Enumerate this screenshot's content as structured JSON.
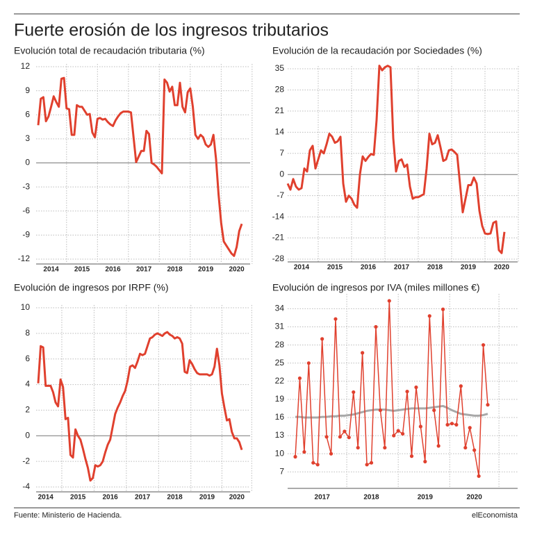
{
  "title": "Fuerte erosión de los ingresos tributarios",
  "source": "Fuente: Ministerio de Hacienda.",
  "credit": "elEconomista",
  "chart_data": [
    {
      "type": "line",
      "title": "Evolución total de recaudación tributaria (%)",
      "color": "#e0402e",
      "categories": [
        null,
        null,
        null,
        null,
        null,
        "2014",
        null,
        null,
        null,
        null,
        null,
        null,
        null,
        null,
        null,
        null,
        null,
        "2015",
        null,
        null,
        null,
        null,
        null,
        null,
        null,
        null,
        null,
        null,
        null,
        "2016",
        null,
        null,
        null,
        null,
        null,
        null,
        null,
        null,
        null,
        null,
        null,
        "2017",
        null,
        null,
        null,
        null,
        null,
        null,
        null,
        null,
        null,
        null,
        null,
        "2018",
        null,
        null,
        null,
        null,
        null,
        null,
        null,
        null,
        null,
        null,
        null,
        "2019",
        null,
        null,
        null,
        null,
        null,
        null,
        null,
        null,
        null,
        null,
        null,
        "2020",
        null,
        null
      ],
      "values": [
        4.7,
        8,
        8.2,
        5.2,
        5.8,
        7,
        8.3,
        7.6,
        7,
        10.5,
        10.6,
        6.8,
        6.7,
        3.5,
        3.5,
        7.2,
        7,
        7,
        6.5,
        6,
        6.1,
        3.8,
        3.2,
        5.5,
        5.6,
        5.4,
        5.5,
        5.1,
        4.8,
        4.6,
        5.3,
        5.8,
        6.2,
        6.4,
        6.4,
        6.4,
        6.3,
        3.2,
        0.1,
        0.8,
        1.5,
        1.5,
        4,
        3.6,
        0,
        -0.2,
        -0.5,
        -0.9,
        -1.3,
        10.4,
        10,
        8.9,
        9.5,
        7.2,
        7.2,
        10,
        7,
        6.3,
        8.8,
        9.3,
        7,
        3.5,
        3,
        3.5,
        3.2,
        2.3,
        2,
        2.3,
        3.5,
        0.5,
        -4,
        -7.5,
        -9.8,
        -10.3,
        -10.8,
        -11.3,
        -11.6,
        -10.5,
        -8.5,
        -7.6
      ],
      "ylim": [
        -12,
        12
      ],
      "yticks": [
        12,
        9,
        6,
        3,
        0,
        -3,
        -6,
        -9,
        -12
      ],
      "grid": true
    },
    {
      "type": "line",
      "title": "Evolución de la recaudación por Sociedades (%)",
      "color": "#e0402e",
      "categories": [
        null,
        null,
        null,
        null,
        null,
        "2014",
        null,
        null,
        null,
        null,
        null,
        null,
        null,
        null,
        null,
        null,
        null,
        "2015",
        null,
        null,
        null,
        null,
        null,
        null,
        null,
        null,
        null,
        null,
        null,
        "2016",
        null,
        null,
        null,
        null,
        null,
        null,
        null,
        null,
        null,
        null,
        null,
        "2017",
        null,
        null,
        null,
        null,
        null,
        null,
        null,
        null,
        null,
        null,
        null,
        "2018",
        null,
        null,
        null,
        null,
        null,
        null,
        null,
        null,
        null,
        null,
        null,
        "2019",
        null,
        null,
        null,
        null,
        null,
        null,
        null,
        null,
        null,
        null,
        null,
        "2020",
        null
      ],
      "values": [
        -3,
        -5,
        -1.5,
        -4,
        -5,
        -4.5,
        2,
        1,
        8,
        9.5,
        2,
        5,
        8,
        7,
        10,
        13.5,
        12.5,
        10.5,
        11,
        12.5,
        -3,
        -9,
        -7,
        -8,
        -10,
        -11,
        0,
        6,
        4.5,
        5.8,
        6.8,
        6.5,
        18,
        36,
        34.5,
        35.5,
        36,
        35.5,
        12,
        1,
        4.5,
        5,
        2.5,
        3.3,
        -4,
        -8,
        -7.5,
        -7.5,
        -7,
        -6.5,
        2,
        13.5,
        10,
        10.5,
        13,
        9,
        4.5,
        5,
        8,
        8.3,
        7.5,
        6.5,
        -3,
        -12.5,
        -8,
        -3.5,
        -3.5,
        -1,
        -3,
        -12,
        -17,
        -19.5,
        -19.7,
        -19.5,
        -16,
        -15.5,
        -25,
        -26,
        -19
      ],
      "ylim": [
        -28,
        35
      ],
      "yticks": [
        35,
        28,
        21,
        14,
        7,
        0,
        -7,
        -14,
        -21,
        -28
      ],
      "grid": true
    },
    {
      "type": "line",
      "title": "Evolución de ingresos por IRPF (%)",
      "color": "#e0402e",
      "categories": [
        null,
        null,
        null,
        "2014",
        null,
        null,
        null,
        null,
        null,
        null,
        null,
        null,
        null,
        null,
        null,
        null,
        "2015",
        null,
        null,
        null,
        null,
        null,
        null,
        null,
        null,
        null,
        null,
        null,
        null,
        "2016",
        null,
        null,
        null,
        null,
        null,
        null,
        null,
        null,
        null,
        null,
        null,
        null,
        "2017",
        null,
        null,
        null,
        null,
        null,
        null,
        null,
        null,
        null,
        null,
        null,
        null,
        "2018",
        null,
        null,
        null,
        null,
        null,
        null,
        null,
        null,
        null,
        null,
        null,
        null,
        "2019",
        null,
        null,
        null,
        null,
        null,
        null,
        null,
        null,
        null,
        null,
        null,
        "2020",
        null,
        null
      ],
      "values": [
        4.1,
        7,
        6.9,
        3.9,
        3.9,
        3.9,
        3.4,
        2.6,
        2.3,
        4.4,
        3.8,
        1.3,
        1.4,
        -1.5,
        -1.7,
        0.5,
        0,
        -0.3,
        -1,
        -1.8,
        -2.5,
        -3.5,
        -3.3,
        -2.3,
        -2.4,
        -2.3,
        -2,
        -1.3,
        -0.7,
        -0.3,
        0.7,
        1.7,
        2.2,
        2.6,
        3.1,
        3.5,
        4.3,
        5.4,
        5.5,
        5.3,
        5.8,
        6.4,
        6.3,
        6.4,
        7,
        7.6,
        7.7,
        7.9,
        8,
        7.9,
        7.8,
        8,
        8.1,
        7.9,
        7.8,
        7.6,
        7.7,
        7.6,
        7.2,
        5,
        4.9,
        5.9,
        5.6,
        5.2,
        4.9,
        4.8,
        4.8,
        4.8,
        4.8,
        4.7,
        4.8,
        5.4,
        6.8,
        5.5,
        3.3,
        2.2,
        1.2,
        1.3,
        0.3,
        -0.2,
        -0.2,
        -0.5,
        -1.1
      ],
      "ylim": [
        -4,
        10
      ],
      "yticks": [
        10,
        8,
        6,
        4,
        2,
        0,
        -2,
        -4
      ],
      "grid": true
    },
    {
      "type": "line_markers",
      "title": "Evolución de ingresos por IVA (miles millones €)",
      "categories": [
        null,
        null,
        null,
        null,
        null,
        null,
        "2017",
        null,
        null,
        null,
        null,
        null,
        null,
        null,
        null,
        null,
        null,
        "2018",
        null,
        null,
        null,
        null,
        null,
        null,
        null,
        null,
        null,
        null,
        null,
        "2019",
        null,
        null,
        null,
        null,
        null,
        null,
        null,
        null,
        null,
        null,
        "2020",
        null,
        null,
        null
      ],
      "series": [
        {
          "color": "#e0402e",
          "markers": true,
          "values": [
            9.5,
            22.5,
            10.3,
            25,
            8.5,
            8.2,
            29,
            12.8,
            10,
            32.3,
            12.8,
            13.7,
            12.7,
            20.2,
            11,
            26.7,
            8.2,
            8.5,
            31,
            17.2,
            11,
            35.3,
            13,
            13.8,
            13.3,
            20.3,
            9.6,
            21,
            14.5,
            8.7,
            32.8,
            17.2,
            11.3,
            33.9,
            14.8,
            15,
            14.8,
            21.2,
            11,
            14.3,
            10.6,
            6.3,
            28,
            18.1
          ]
        },
        {
          "color": "#a8a8a8",
          "markers": false,
          "values": [
            16.1,
            16.1,
            16.0,
            16.0,
            16.0,
            16.0,
            16.1,
            16.1,
            16.2,
            16.2,
            16.3,
            16.3,
            16.4,
            16.5,
            16.7,
            16.9,
            17.1,
            17.2,
            17.3,
            17.3,
            17.3,
            17.2,
            17.1,
            17.2,
            17.3,
            17.4,
            17.5,
            17.5,
            17.5,
            17.5,
            17.6,
            17.7,
            17.8,
            17.9,
            17.6,
            17.2,
            16.9,
            16.6,
            16.5,
            16.4,
            16.3,
            16.3,
            16.4,
            16.6
          ]
        }
      ],
      "ylim": [
        4.5,
        36
      ],
      "yticks": [
        34,
        31,
        28,
        25,
        22,
        19,
        16,
        13,
        10,
        7
      ],
      "grid": true
    }
  ]
}
